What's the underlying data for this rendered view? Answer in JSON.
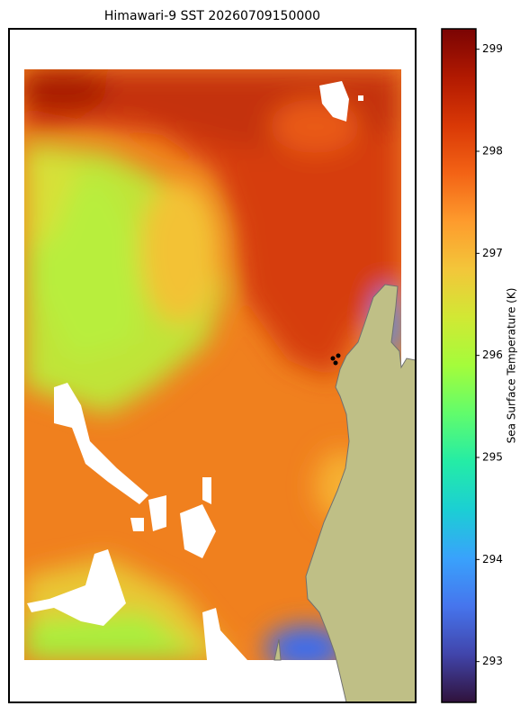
{
  "map": {
    "title": "Himawari-9 SST 20260709150000",
    "colorbar": {
      "label": "Sea Surface Temperature (K)",
      "colormap": "turbo",
      "lim": [
        292.6,
        299.2
      ],
      "ticks": [
        293,
        294,
        295,
        296,
        297,
        298,
        299
      ]
    }
  }
}
